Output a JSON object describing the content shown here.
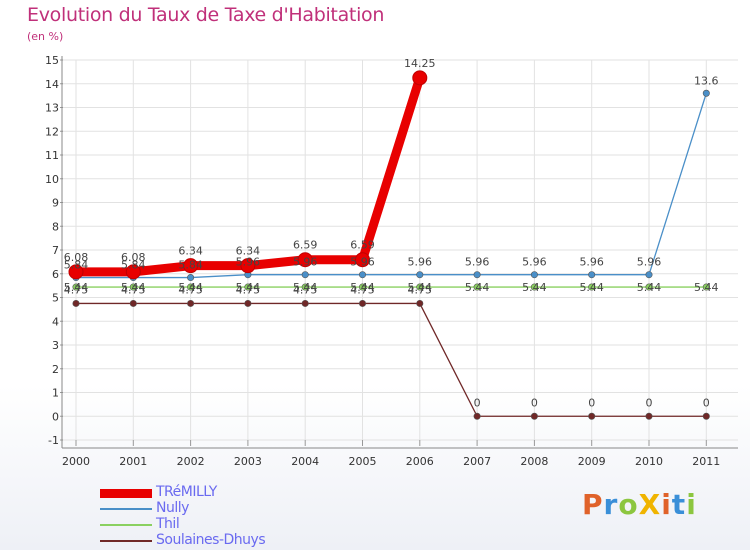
{
  "header": {
    "title": "Evolution du Taux de Taxe d'Habitation",
    "subtitle": "(en %)"
  },
  "logo": {
    "text": "ProXiti",
    "colors": [
      "#e0622a",
      "#3a8fd8",
      "#8cc63f",
      "#f0b400",
      "#e0622a",
      "#3a8fd8",
      "#8cc63f"
    ]
  },
  "chart_data": {
    "type": "line",
    "title": "Evolution du Taux de Taxe d'Habitation",
    "ylabel": "(en %)",
    "xlabel": "",
    "categories": [
      "2000",
      "2001",
      "2002",
      "2003",
      "2004",
      "2005",
      "2006",
      "2007",
      "2008",
      "2009",
      "2010",
      "2011"
    ],
    "ylim": [
      -1,
      15
    ],
    "yticks": [
      "-1",
      "0",
      "1",
      "2",
      "3",
      "4",
      "5",
      "6",
      "7",
      "8",
      "9",
      "10",
      "11",
      "12",
      "13",
      "14",
      "15"
    ],
    "series": [
      {
        "name": "TRéMILLY",
        "color": "#e80000",
        "values": [
          6.08,
          6.08,
          6.34,
          6.34,
          6.59,
          6.59,
          14.25,
          null,
          null,
          null,
          null,
          null
        ],
        "labels": [
          "6.08",
          "6.08",
          "6.34",
          "6.34",
          "6.59",
          "6.59",
          "14.25",
          null,
          null,
          null,
          null,
          null
        ]
      },
      {
        "name": "Nully",
        "color": "#4a8fc8",
        "values": [
          5.84,
          5.84,
          5.84,
          5.96,
          5.96,
          5.96,
          5.96,
          5.96,
          5.96,
          5.96,
          5.96,
          13.6
        ],
        "labels": [
          "5.84",
          "5.84",
          "5.84",
          "5.96",
          "5.96",
          "5.96",
          "5.96",
          "5.96",
          "5.96",
          "5.96",
          "5.96",
          "13.6"
        ]
      },
      {
        "name": "Thil",
        "color": "#8ad060",
        "values": [
          5.44,
          5.44,
          5.44,
          5.44,
          5.44,
          5.44,
          5.44,
          5.44,
          5.44,
          5.44,
          5.44,
          5.44
        ],
        "labels": [
          "5.44",
          "5.44",
          "5.44",
          "5.44",
          "5.44",
          "5.44",
          "5.44",
          "5.44",
          "5.44",
          "5.44",
          "5.44",
          "5.44"
        ]
      },
      {
        "name": "Soulaines-Dhuys",
        "color": "#702828",
        "values": [
          4.75,
          4.75,
          4.75,
          4.75,
          4.75,
          4.75,
          4.75,
          0,
          0,
          0,
          0,
          0
        ],
        "labels": [
          "4.75",
          "4.75",
          "4.75",
          "4.75",
          "4.75",
          "4.75",
          "4.75",
          "0",
          "0",
          "0",
          "0",
          "0"
        ]
      }
    ],
    "grid": true,
    "legend": "bottom-left"
  }
}
